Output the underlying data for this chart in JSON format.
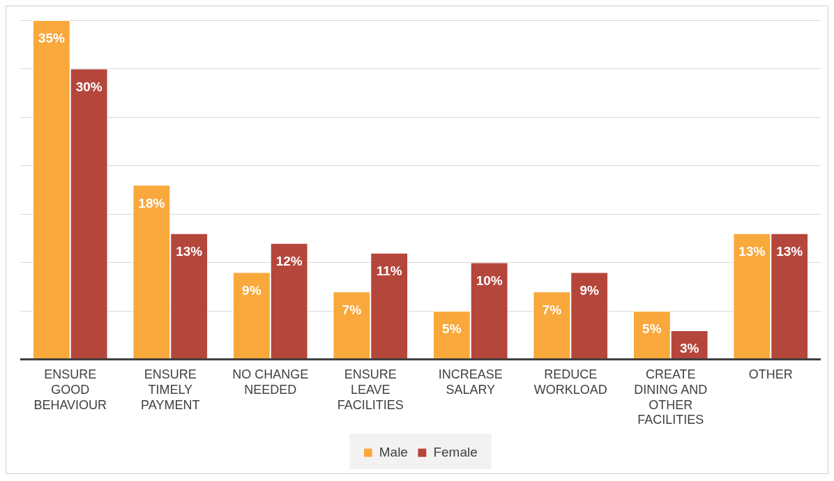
{
  "chart_data": {
    "type": "bar",
    "categories": [
      "ENSURE GOOD BEHAVIOUR",
      "ENSURE TIMELY PAYMENT",
      "NO CHANGE NEEDED",
      "ENSURE LEAVE FACILITIES",
      "INCREASE SALARY",
      "REDUCE WORKLOAD",
      "CREATE DINING AND OTHER FACILITIES",
      "OTHER"
    ],
    "series": [
      {
        "name": "Male",
        "color": "#f9a83c",
        "values": [
          35,
          18,
          9,
          7,
          5,
          7,
          5,
          13
        ],
        "value_labels": [
          "35%",
          "18%",
          "9%",
          "7%",
          "5%",
          "7%",
          "5%",
          "13%"
        ]
      },
      {
        "name": "Female",
        "color": "#b5463b",
        "values": [
          30,
          13,
          12,
          11,
          10,
          9,
          3,
          13
        ],
        "value_labels": [
          "30%",
          "13%",
          "12%",
          "11%",
          "10%",
          "9%",
          "3%",
          "13%"
        ]
      }
    ],
    "tick_labels": "x",
    "grid": "y",
    "legend": "bottom"
  }
}
